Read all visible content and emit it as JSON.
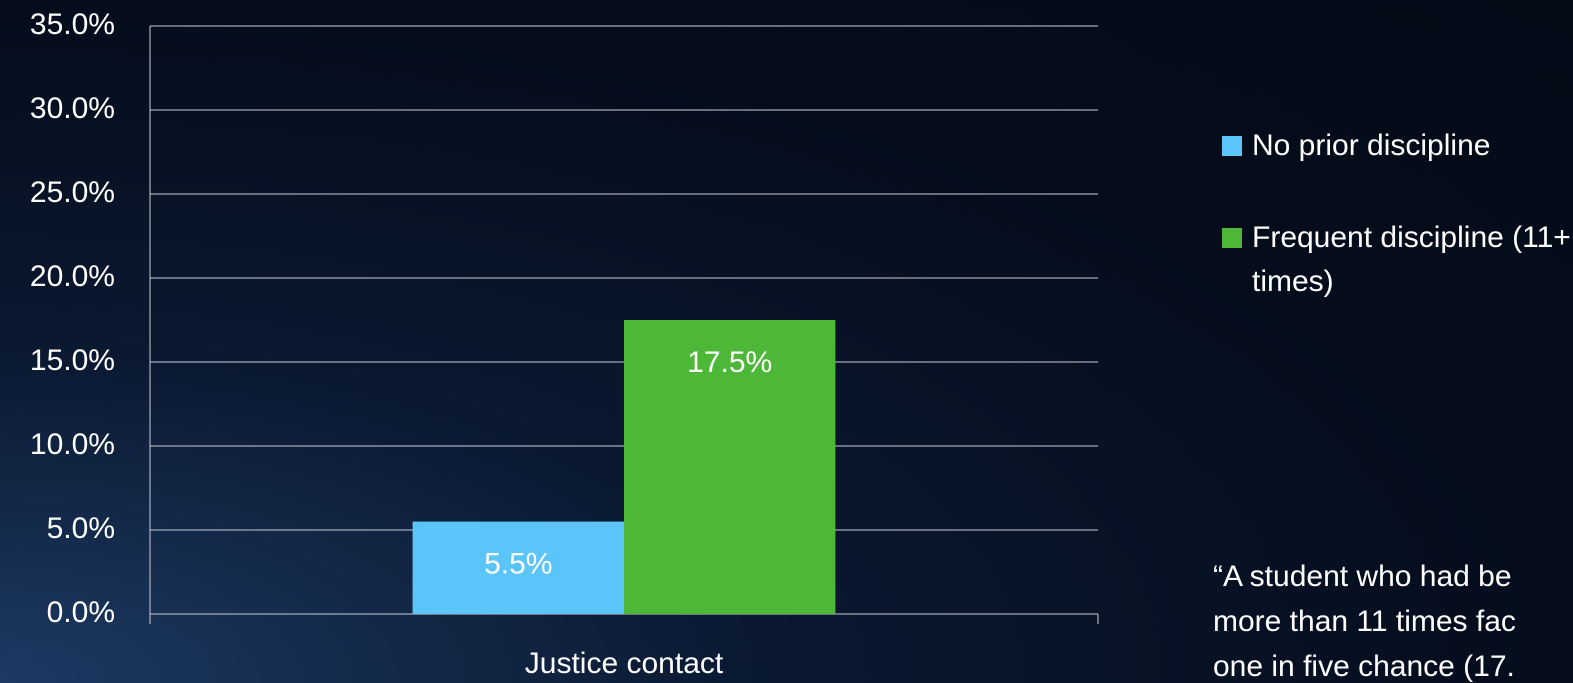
{
  "chart_data": {
    "type": "bar",
    "categories": [
      "Justice contact"
    ],
    "series": [
      {
        "name": "No prior discipline",
        "color": "#5bc4f8",
        "values": [
          5.5
        ],
        "value_labels": [
          "5.5%"
        ]
      },
      {
        "name": "Frequent discipline (11+ times)",
        "color": "#4db838",
        "values": [
          17.5
        ],
        "value_labels": [
          "17.5%"
        ]
      }
    ],
    "ylim": [
      0,
      35
    ],
    "yticks": [
      {
        "value": 0,
        "label": "0.0%"
      },
      {
        "value": 5,
        "label": "5.0%"
      },
      {
        "value": 10,
        "label": "10.0%"
      },
      {
        "value": 15,
        "label": "15.0%"
      },
      {
        "value": 20,
        "label": "20.0%"
      },
      {
        "value": 25,
        "label": "25.0%"
      },
      {
        "value": 30,
        "label": "30.0%"
      },
      {
        "value": 35,
        "label": "35.0%"
      }
    ],
    "grid": true,
    "legend": "right",
    "annotation_lines": [
      "“A student who had be",
      "more than 11 times fac",
      "one in five chance (17."
    ]
  }
}
